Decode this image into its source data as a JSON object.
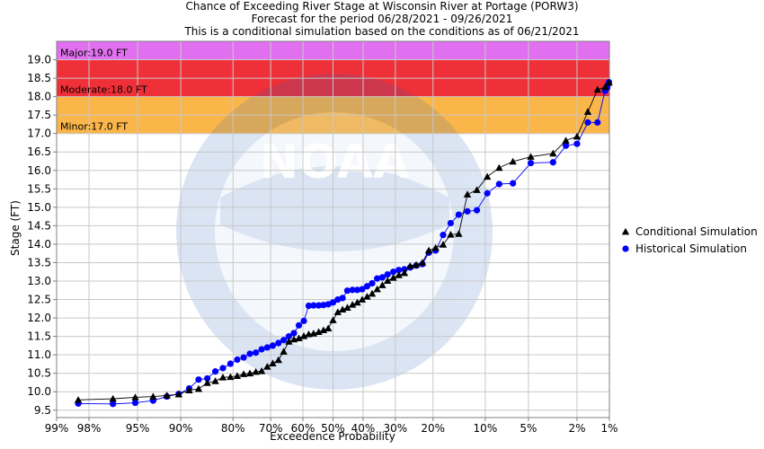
{
  "titles": [
    "Chance of Exceeding River Stage at Wisconsin River at Portage (PORW3)",
    "Forecast for the period 06/28/2021 - 09/26/2021",
    "This is a conditional simulation based on the conditions as of 06/21/2021"
  ],
  "chart_data": {
    "type": "line",
    "title": "Chance of Exceeding River Stage at Wisconsin River at Portage (PORW3)",
    "subtitle": "Forecast for the period 06/28/2021 - 09/26/2021",
    "note": "This is a conditional simulation based on the conditions as of 06/21/2021",
    "xlabel": "Exceedence Probability",
    "ylabel": "Stage (FT)",
    "x_scale": "normal-probability",
    "x_reversed": true,
    "xlim": [
      99,
      1
    ],
    "ylim": [
      9.3,
      19.5
    ],
    "grid": true,
    "legend_position": "right",
    "x_ticks": [
      {
        "value": 99,
        "label": "99%"
      },
      {
        "value": 98,
        "label": "98%"
      },
      {
        "value": 95,
        "label": "95%"
      },
      {
        "value": 90,
        "label": "90%"
      },
      {
        "value": 80,
        "label": "80%"
      },
      {
        "value": 70,
        "label": "70%"
      },
      {
        "value": 60,
        "label": "60%"
      },
      {
        "value": 50,
        "label": "50%"
      },
      {
        "value": 40,
        "label": "40%"
      },
      {
        "value": 30,
        "label": "30%"
      },
      {
        "value": 20,
        "label": "20%"
      },
      {
        "value": 10,
        "label": "10%"
      },
      {
        "value": 5,
        "label": "5%"
      },
      {
        "value": 2,
        "label": "2%"
      },
      {
        "value": 1,
        "label": "1%"
      }
    ],
    "y_ticks": [
      9.5,
      10.0,
      10.5,
      11.0,
      11.5,
      12.0,
      12.5,
      13.0,
      13.5,
      14.0,
      14.5,
      15.0,
      15.5,
      16.0,
      16.5,
      17.0,
      17.5,
      18.0,
      18.5,
      19.0
    ],
    "flood_categories": [
      {
        "label": "Major:19.0 FT",
        "from": 19.0,
        "to": 19.5,
        "color": "#e070f0"
      },
      {
        "label": "Moderate:18.0 FT",
        "from": 18.0,
        "to": 19.0,
        "color": "#f03038"
      },
      {
        "label": "Minor:17.0 FT",
        "from": 17.0,
        "to": 18.0,
        "color": "#fbb64a"
      }
    ],
    "series": [
      {
        "name": "Conditional Simulation",
        "color": "#000000",
        "marker": "triangle",
        "points": [
          [
            98.4,
            9.78
          ],
          [
            96.8,
            9.81
          ],
          [
            95.2,
            9.85
          ],
          [
            93.5,
            9.87
          ],
          [
            91.9,
            9.9
          ],
          [
            90.3,
            9.93
          ],
          [
            88.7,
            10.04
          ],
          [
            87.1,
            10.08
          ],
          [
            85.5,
            10.24
          ],
          [
            83.9,
            10.29
          ],
          [
            82.3,
            10.39
          ],
          [
            80.6,
            10.4
          ],
          [
            79,
            10.43
          ],
          [
            77.4,
            10.48
          ],
          [
            75.8,
            10.5
          ],
          [
            74.2,
            10.54
          ],
          [
            72.6,
            10.56
          ],
          [
            71,
            10.68
          ],
          [
            69.4,
            10.77
          ],
          [
            67.7,
            10.86
          ],
          [
            66.1,
            11.09
          ],
          [
            64.5,
            11.36
          ],
          [
            62.9,
            11.42
          ],
          [
            61.3,
            11.45
          ],
          [
            59.7,
            11.51
          ],
          [
            58.1,
            11.56
          ],
          [
            56.5,
            11.58
          ],
          [
            54.8,
            11.62
          ],
          [
            53.2,
            11.67
          ],
          [
            51.6,
            11.72
          ],
          [
            50,
            11.94
          ],
          [
            48.4,
            12.16
          ],
          [
            46.8,
            12.23
          ],
          [
            45.2,
            12.28
          ],
          [
            43.5,
            12.36
          ],
          [
            41.9,
            12.42
          ],
          [
            40.3,
            12.5
          ],
          [
            38.7,
            12.58
          ],
          [
            37.1,
            12.66
          ],
          [
            35.5,
            12.78
          ],
          [
            33.9,
            12.89
          ],
          [
            32.3,
            13.01
          ],
          [
            30.6,
            13.09
          ],
          [
            29,
            13.16
          ],
          [
            27.4,
            13.22
          ],
          [
            25.8,
            13.41
          ],
          [
            24.2,
            13.44
          ],
          [
            22.6,
            13.5
          ],
          [
            21,
            13.83
          ],
          [
            19.4,
            13.9
          ],
          [
            17.7,
            13.99
          ],
          [
            16.1,
            14.26
          ],
          [
            14.5,
            14.28
          ],
          [
            12.9,
            15.35
          ],
          [
            11.3,
            15.47
          ],
          [
            9.7,
            15.83
          ],
          [
            8.1,
            16.07
          ],
          [
            6.5,
            16.24
          ],
          [
            4.8,
            16.37
          ],
          [
            3.2,
            16.46
          ],
          [
            2.5,
            16.81
          ],
          [
            2,
            16.92
          ],
          [
            1.6,
            17.59
          ],
          [
            1.3,
            18.19
          ],
          [
            1.1,
            18.26
          ],
          [
            1.01,
            18.38
          ]
        ]
      },
      {
        "name": "Historical Simulation",
        "color": "#0000ff",
        "marker": "circle",
        "points": [
          [
            98.4,
            9.68
          ],
          [
            96.8,
            9.67
          ],
          [
            95.2,
            9.7
          ],
          [
            93.5,
            9.76
          ],
          [
            91.9,
            9.87
          ],
          [
            90.3,
            9.94
          ],
          [
            88.7,
            10.09
          ],
          [
            87.1,
            10.33
          ],
          [
            85.5,
            10.36
          ],
          [
            83.9,
            10.55
          ],
          [
            82.3,
            10.64
          ],
          [
            80.6,
            10.76
          ],
          [
            79,
            10.87
          ],
          [
            77.4,
            10.93
          ],
          [
            75.8,
            11.03
          ],
          [
            74.2,
            11.06
          ],
          [
            72.6,
            11.15
          ],
          [
            71,
            11.2
          ],
          [
            69.4,
            11.25
          ],
          [
            67.7,
            11.32
          ],
          [
            66.1,
            11.4
          ],
          [
            64.5,
            11.5
          ],
          [
            62.9,
            11.59
          ],
          [
            61.3,
            11.8
          ],
          [
            59.7,
            11.92
          ],
          [
            58.1,
            12.33
          ],
          [
            56.5,
            12.34
          ],
          [
            54.8,
            12.34
          ],
          [
            53.2,
            12.35
          ],
          [
            51.6,
            12.37
          ],
          [
            50,
            12.42
          ],
          [
            48.4,
            12.5
          ],
          [
            46.8,
            12.54
          ],
          [
            45.2,
            12.74
          ],
          [
            43.5,
            12.76
          ],
          [
            41.9,
            12.76
          ],
          [
            40.3,
            12.78
          ],
          [
            38.7,
            12.86
          ],
          [
            37.1,
            12.94
          ],
          [
            35.5,
            13.07
          ],
          [
            33.9,
            13.1
          ],
          [
            32.3,
            13.18
          ],
          [
            30.6,
            13.25
          ],
          [
            29,
            13.3
          ],
          [
            27.4,
            13.32
          ],
          [
            25.8,
            13.37
          ],
          [
            24.2,
            13.42
          ],
          [
            22.6,
            13.46
          ],
          [
            21,
            13.77
          ],
          [
            19.4,
            13.83
          ],
          [
            17.7,
            14.25
          ],
          [
            16.1,
            14.57
          ],
          [
            14.5,
            14.8
          ],
          [
            12.9,
            14.89
          ],
          [
            11.3,
            14.92
          ],
          [
            9.7,
            15.38
          ],
          [
            8.1,
            15.63
          ],
          [
            6.5,
            15.65
          ],
          [
            4.8,
            16.2
          ],
          [
            3.2,
            16.22
          ],
          [
            2.5,
            16.67
          ],
          [
            2,
            16.72
          ],
          [
            1.6,
            17.3
          ],
          [
            1.3,
            17.3
          ],
          [
            1.1,
            18.16
          ],
          [
            1.05,
            18.24
          ],
          [
            1.02,
            18.35
          ],
          [
            1.01,
            18.39
          ]
        ]
      }
    ]
  }
}
